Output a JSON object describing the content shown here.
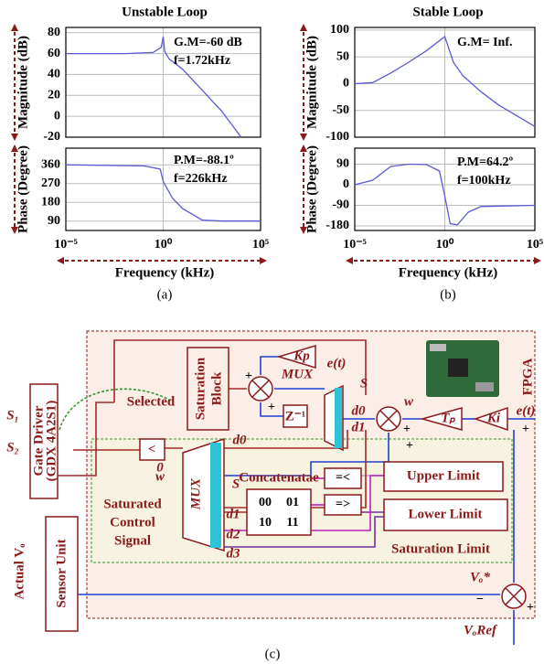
{
  "chart_data": [
    {
      "type": "line",
      "title": "Unstable Loop",
      "ylabel": "Magnitude (dB)",
      "xscale": "log",
      "xlim": [
        1e-05,
        100000
      ],
      "ylim": [
        -20,
        85
      ],
      "yticks": [
        -20,
        0,
        20,
        40,
        60,
        80
      ],
      "grid": true,
      "annotations": [
        "G.M=-60 dB",
        "f=1.72kHz"
      ],
      "x": [
        1e-05,
        0.01,
        0.3,
        0.8,
        1,
        1.2,
        2,
        10,
        100,
        1000,
        10000
      ],
      "series": [
        {
          "color": "#5a5ad8",
          "values": [
            60,
            60,
            61,
            66,
            76,
            62,
            55,
            45,
            25,
            5,
            -20
          ]
        }
      ]
    },
    {
      "type": "line",
      "ylabel": "Phase (Degree)",
      "xlabel": "Frequency (kHz)",
      "xscale": "log",
      "xlim": [
        1e-05,
        100000
      ],
      "ylim": [
        45,
        440
      ],
      "yticks": [
        90,
        180,
        270,
        360
      ],
      "xticks": [
        {
          "value": 1e-05,
          "label": "10⁻⁵"
        },
        {
          "value": 1,
          "label": "10⁰"
        },
        {
          "value": 100000,
          "label": "10⁵"
        }
      ],
      "grid": true,
      "annotations": [
        "P.M=-88.1º",
        "f=226kHz"
      ],
      "x": [
        1e-05,
        0.1,
        0.7,
        1,
        1.5,
        3,
        10,
        100,
        1000,
        100000
      ],
      "series": [
        {
          "color": "#5a5ad8",
          "values": [
            360,
            355,
            340,
            280,
            250,
            200,
            150,
            95,
            90,
            90
          ]
        }
      ]
    },
    {
      "type": "line",
      "title": "Stable Loop",
      "ylabel": "Magnitude (dB)",
      "xscale": "log",
      "xlim": [
        1e-05,
        100000
      ],
      "ylim": [
        -100,
        105
      ],
      "yticks": [
        -100,
        -50,
        0,
        50,
        100
      ],
      "grid": true,
      "annotations": [
        "G.M= Inf."
      ],
      "x": [
        1e-05,
        0.0001,
        0.001,
        0.01,
        0.1,
        1,
        3,
        10,
        100,
        1000,
        100000
      ],
      "series": [
        {
          "color": "#5a5ad8",
          "values": [
            0,
            2,
            20,
            40,
            62,
            88,
            40,
            15,
            -15,
            -40,
            -80
          ]
        }
      ]
    },
    {
      "type": "line",
      "ylabel": "Phase (Degree)",
      "xlabel": "Frequency (kHz)",
      "xscale": "log",
      "xlim": [
        1e-05,
        100000
      ],
      "ylim": [
        -200,
        160
      ],
      "yticks": [
        -180,
        -90,
        0,
        90
      ],
      "xticks": [
        {
          "value": 1e-05,
          "label": "10⁻⁵"
        },
        {
          "value": 1,
          "label": "10⁰"
        },
        {
          "value": 100000,
          "label": "10⁵"
        }
      ],
      "grid": true,
      "annotations": [
        "P.M=64.2º",
        "f=100kHz"
      ],
      "x": [
        1e-05,
        0.0001,
        0.001,
        0.01,
        0.1,
        0.5,
        1,
        2,
        5,
        20,
        100,
        100000
      ],
      "series": [
        {
          "color": "#5a5ad8",
          "values": [
            0,
            20,
            80,
            90,
            88,
            60,
            -50,
            -170,
            -175,
            -120,
            -95,
            -90
          ]
        }
      ]
    }
  ],
  "captions": {
    "a": "(a)",
    "b": "(b)",
    "c": "(c)"
  },
  "diagram": {
    "fpga": "FPGA",
    "selected": "Selected",
    "saturation": "Saturation",
    "block": "Block",
    "kp": "Kp",
    "e_t_1": "e(t)",
    "mux_top": "MUX",
    "s_top": "S",
    "z_inv": "Z⁻¹",
    "d0_top": "d0",
    "d1_top": "d1",
    "w_top": "w",
    "tp": "Tₚ",
    "ki": "Ki",
    "e_t_2": "e(t)",
    "s1": "S₁",
    "s2": "S₂",
    "gate_driver": "Gate Driver",
    "gdx": "(GDX 4A2S1)",
    "lt": "<",
    "zero": "0",
    "d0_mid": "d0",
    "concat": "Concatenatae",
    "c00": "00",
    "c01": "01",
    "c10": "10",
    "c11": "11",
    "le": "=<",
    "ge": "=>",
    "upper": "Upper  Limit",
    "lower": "Lower Limit",
    "sat_limit": "Saturation Limit",
    "mux_big": "MUX",
    "w_mid": "w",
    "s_mid": "S",
    "saturated": "Saturated",
    "control": "Control",
    "signal": "Signal",
    "d1": "d1",
    "d2": "d2",
    "d3": "d3",
    "actual": "Actual Vₒ",
    "sensor": "Sensor Unit",
    "vo_star": "Vₒ*",
    "vo_ref": "VₒRef",
    "minus": "−",
    "plus_a": "+",
    "plus_b": "+",
    "plus_c": "+",
    "plus_d": "+",
    "plus_e": "+",
    "plus_f": "+"
  }
}
